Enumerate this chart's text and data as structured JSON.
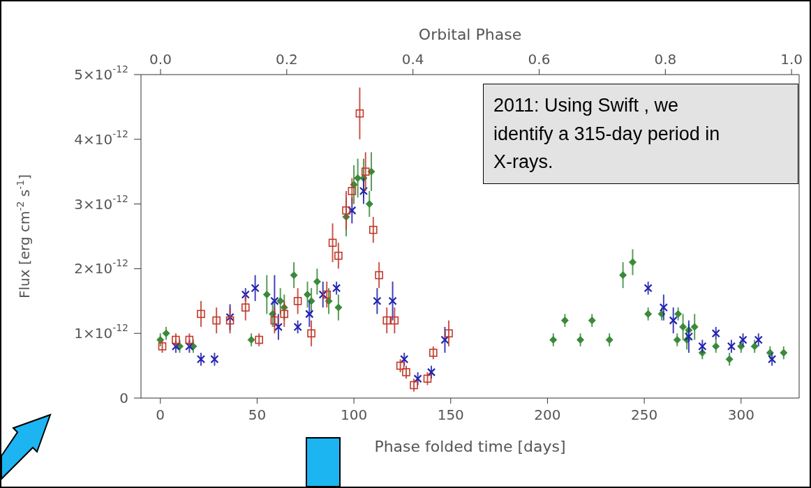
{
  "chart_data": {
    "type": "scatter",
    "xlabel": "Phase folded time [days]",
    "x2label": "Orbital Phase",
    "ylabel": "Flux [erg cm$^{-2}$ s$^{-1}$]",
    "xlim": [
      -10,
      330
    ],
    "xticks": [
      0,
      50,
      100,
      150,
      200,
      250,
      300
    ],
    "x2lim": [
      -0.031,
      1.012
    ],
    "x2ticks": [
      {
        "value": 0,
        "label": "0.0"
      },
      {
        "value": 0.2,
        "label": "0.2"
      },
      {
        "value": 0.4,
        "label": "0.4"
      },
      {
        "value": 0.6,
        "label": "0.6"
      },
      {
        "value": 0.8,
        "label": "0.8"
      },
      {
        "value": 1,
        "label": "1.0"
      }
    ],
    "ylim": [
      0,
      5e-12
    ],
    "yticks": [
      {
        "value": 0,
        "label": "0"
      },
      {
        "value": 1e-12,
        "label": "1×10$^{-12}$"
      },
      {
        "value": 2e-12,
        "label": "2×10$^{-12}$"
      },
      {
        "value": 3e-12,
        "label": "3×10$^{-12}$"
      },
      {
        "value": 4e-12,
        "label": "4×10$^{-12}$"
      },
      {
        "value": 5e-12,
        "label": "5×10$^{-12}$"
      }
    ],
    "annotations": [
      "2011: Using Swift , we identify a 315-day period in X-rays."
    ],
    "series": [
      {
        "color": "#c0392b",
        "marker": "square",
        "x": [
          1,
          8,
          15,
          21,
          29,
          36,
          44,
          51,
          59,
          64,
          71,
          78,
          86,
          89,
          92,
          96,
          99,
          103,
          106,
          110,
          113,
          117,
          121,
          124,
          127,
          131,
          138,
          141,
          149
        ],
        "values": [
          8e-13,
          9e-13,
          9e-13,
          1.3e-12,
          1.2e-12,
          1.2e-12,
          1.4e-12,
          9e-13,
          1.2e-12,
          1.3e-12,
          1.5e-12,
          1e-12,
          1.6e-12,
          2.4e-12,
          2.2e-12,
          2.9e-12,
          3.2e-12,
          4.4e-12,
          3.5e-12,
          2.6e-12,
          1.9e-12,
          1.2e-12,
          1.2e-12,
          5e-13,
          4e-13,
          2e-13,
          3e-13,
          7e-13,
          1e-12
        ],
        "errors": [
          1e-13,
          1e-13,
          1e-13,
          2e-13,
          2e-13,
          2e-13,
          2e-13,
          1e-13,
          2e-13,
          2e-13,
          2e-13,
          2e-13,
          2e-13,
          3e-13,
          2e-13,
          3e-13,
          2e-13,
          4e-13,
          3e-13,
          2e-13,
          2e-13,
          2e-13,
          2e-13,
          1e-13,
          1e-13,
          1e-13,
          1e-13,
          1e-13,
          2e-13
        ]
      },
      {
        "color": "#2020b0",
        "marker": "cross",
        "x": [
          8,
          15,
          21,
          28,
          36,
          44,
          49,
          59,
          61,
          71,
          77,
          84,
          91,
          99,
          105,
          112,
          120,
          126,
          133,
          140,
          147,
          252,
          260,
          265,
          273,
          280,
          287,
          295,
          301,
          309,
          316
        ],
        "values": [
          8e-13,
          8e-13,
          6e-13,
          6e-13,
          1.25e-12,
          1.6e-12,
          1.7e-12,
          1.5e-12,
          1.1e-12,
          1.1e-12,
          1.3e-12,
          1.6e-12,
          1.7e-12,
          2.9e-12,
          3.2e-12,
          1.5e-12,
          1.5e-12,
          6e-13,
          3e-13,
          4e-13,
          9e-13,
          1.7e-12,
          1.4e-12,
          1.2e-12,
          9.5e-13,
          8e-13,
          1e-12,
          8e-13,
          9e-13,
          9e-13,
          6e-13
        ],
        "errors": [
          1e-13,
          1e-13,
          1e-13,
          1e-13,
          2e-13,
          1e-13,
          2e-13,
          4e-13,
          2e-13,
          1e-13,
          2e-13,
          2e-13,
          1e-13,
          2e-13,
          2e-13,
          2e-13,
          3e-13,
          1e-13,
          1e-13,
          1e-13,
          2e-13,
          1e-13,
          2e-13,
          2e-13,
          2.5e-13,
          1e-13,
          1e-13,
          1e-13,
          1e-13,
          1e-13,
          1e-13
        ]
      },
      {
        "color": "#3a8a3a",
        "marker": "diamond",
        "x": [
          0,
          3,
          10,
          17,
          47,
          55,
          58,
          62,
          64,
          69,
          76,
          78,
          81,
          87,
          92,
          96,
          100,
          102,
          105,
          108,
          109,
          203,
          209,
          217,
          223,
          232,
          239,
          244,
          252,
          259,
          267.5,
          267,
          270,
          272,
          273,
          276,
          280,
          287,
          294,
          300,
          307,
          315,
          322
        ],
        "values": [
          9e-13,
          1e-12,
          8e-13,
          8e-13,
          9e-13,
          1.6e-12,
          1.3e-12,
          1.5e-12,
          1.4e-12,
          1.9e-12,
          1.6e-12,
          1.5e-12,
          1.8e-12,
          1.5e-12,
          1.4e-12,
          2.8e-12,
          3.3e-12,
          3.4e-12,
          3.4e-12,
          3e-12,
          3.5e-12,
          9e-13,
          1.2e-12,
          9e-13,
          1.2e-12,
          9e-13,
          1.9e-12,
          2.1e-12,
          1.3e-12,
          1.3e-12,
          1.3e-12,
          9e-13,
          1.1e-12,
          9e-13,
          1.05e-12,
          1.1e-12,
          7e-13,
          8e-13,
          6e-13,
          8e-13,
          8e-13,
          7e-13,
          7e-13
        ],
        "errors": [
          1e-13,
          1e-13,
          1e-13,
          1e-13,
          1e-13,
          3e-13,
          2e-13,
          2e-13,
          2e-13,
          2e-13,
          2e-13,
          2e-13,
          2e-13,
          2e-13,
          2e-13,
          3e-13,
          3e-13,
          3e-13,
          3e-13,
          2e-13,
          3e-13,
          1e-13,
          1e-13,
          1e-13,
          1e-13,
          1e-13,
          2e-13,
          2e-13,
          1e-13,
          1e-13,
          1e-13,
          1e-13,
          2e-13,
          1.5e-13,
          1e-13,
          2e-13,
          1e-13,
          1e-13,
          1e-13,
          1e-13,
          1e-13,
          1e-13,
          1e-13
        ]
      }
    ]
  }
}
